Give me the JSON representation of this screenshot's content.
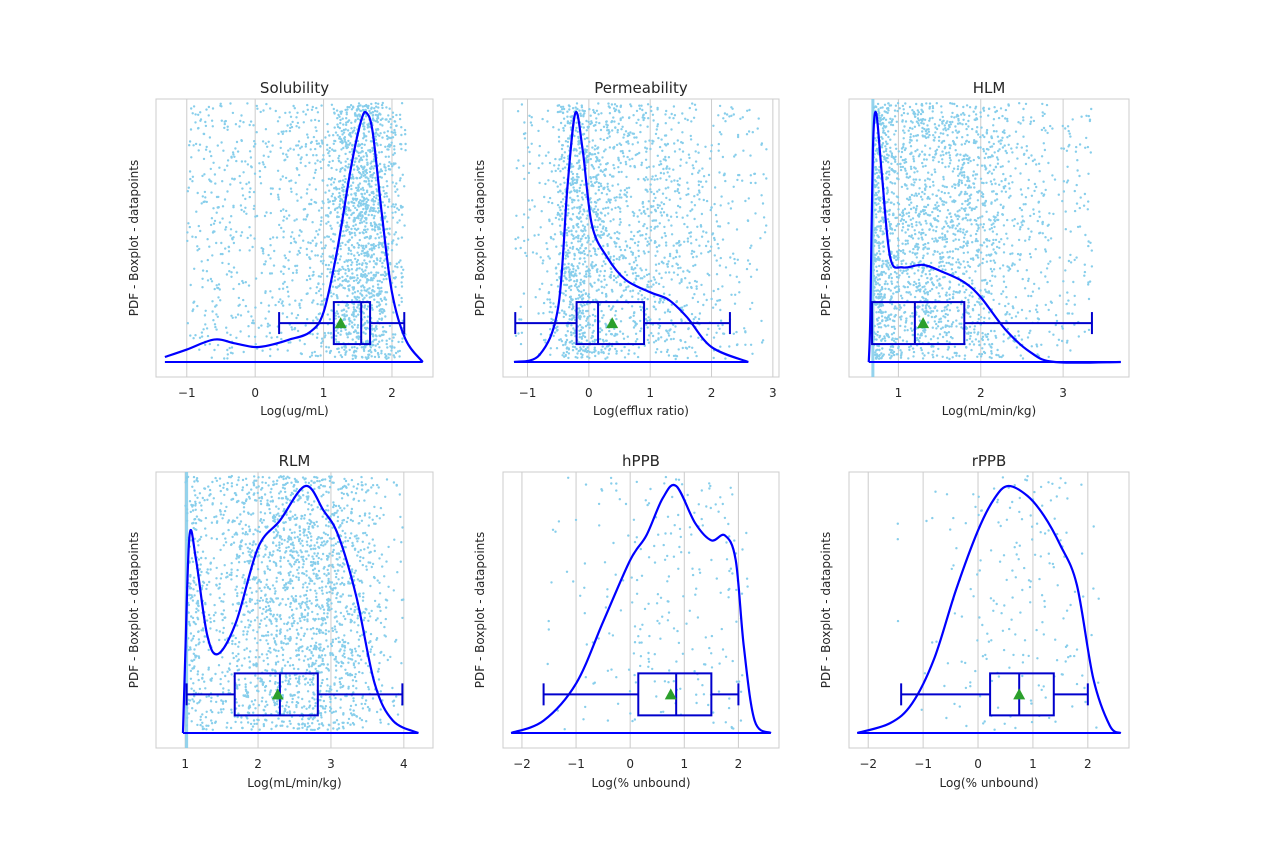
{
  "colors": {
    "points": "#87ceeb",
    "kde": "#0000ff",
    "box": "#0000cd",
    "mean_marker": "#2ca02c",
    "grid": "#cccccc",
    "text": "#262626"
  },
  "chart_data": [
    {
      "type": "violin-box-strip",
      "title": "Solubility",
      "xlabel": "Log(ug/mL)",
      "ylabel": "PDF - Boxplot - datapoints",
      "xlim": [
        -1.45,
        2.6
      ],
      "xticks": [
        -1,
        0,
        1,
        2
      ],
      "grid": true,
      "points_dist": {
        "type": "skewhigh",
        "peak": 1.62,
        "lo": -1.0,
        "hi": 2.2,
        "n": 2200
      },
      "kde": [
        [
          -1.32,
          0.02
        ],
        [
          -1.0,
          0.05
        ],
        [
          -0.6,
          0.09
        ],
        [
          -0.3,
          0.075
        ],
        [
          0.0,
          0.06
        ],
        [
          0.25,
          0.07
        ],
        [
          0.5,
          0.09
        ],
        [
          0.8,
          0.12
        ],
        [
          1.0,
          0.2
        ],
        [
          1.2,
          0.45
        ],
        [
          1.4,
          0.78
        ],
        [
          1.55,
          0.97
        ],
        [
          1.63,
          1.0
        ],
        [
          1.72,
          0.92
        ],
        [
          1.85,
          0.6
        ],
        [
          2.0,
          0.28
        ],
        [
          2.2,
          0.09
        ],
        [
          2.45,
          0.0
        ]
      ],
      "box": {
        "min": 0.35,
        "q1": 1.15,
        "median": 1.55,
        "q3": 1.68,
        "max": 2.18,
        "mean": 1.25
      }
    },
    {
      "type": "violin-box-strip",
      "title": "Permeability",
      "xlabel": "Log(efflux ratio)",
      "ylabel": "PDF - Boxplot - datapoints",
      "xlim": [
        -1.4,
        3.1
      ],
      "xticks": [
        -1,
        0,
        1,
        2,
        3
      ],
      "grid": true,
      "points_dist": {
        "type": "skewlow",
        "peak": -0.2,
        "lo": -1.2,
        "hi": 2.9,
        "n": 2000
      },
      "kde": [
        [
          -1.22,
          0.0
        ],
        [
          -0.8,
          0.03
        ],
        [
          -0.5,
          0.22
        ],
        [
          -0.35,
          0.7
        ],
        [
          -0.22,
          1.0
        ],
        [
          -0.1,
          0.85
        ],
        [
          0.05,
          0.55
        ],
        [
          0.3,
          0.42
        ],
        [
          0.6,
          0.33
        ],
        [
          1.0,
          0.28
        ],
        [
          1.3,
          0.25
        ],
        [
          1.6,
          0.18
        ],
        [
          2.0,
          0.06
        ],
        [
          2.6,
          0.0
        ]
      ],
      "box": {
        "min": -1.2,
        "q1": -0.2,
        "median": 0.15,
        "q3": 0.9,
        "max": 2.3,
        "mean": 0.38
      }
    },
    {
      "type": "violin-box-strip",
      "title": "HLM",
      "xlabel": "Log(mL/min/kg)",
      "ylabel": "PDF - Boxplot - datapoints",
      "xlim": [
        0.4,
        3.8
      ],
      "xticks": [
        1,
        2,
        3
      ],
      "grid": true,
      "points_dist": {
        "type": "skewlow",
        "peak": 0.72,
        "lo": 0.7,
        "hi": 3.35,
        "n": 2300,
        "wall": 0.69
      },
      "kde": [
        [
          0.64,
          0.0
        ],
        [
          0.66,
          0.2
        ],
        [
          0.69,
          0.85
        ],
        [
          0.73,
          1.0
        ],
        [
          0.8,
          0.75
        ],
        [
          0.9,
          0.42
        ],
        [
          1.05,
          0.38
        ],
        [
          1.3,
          0.39
        ],
        [
          1.55,
          0.36
        ],
        [
          1.8,
          0.32
        ],
        [
          2.0,
          0.26
        ],
        [
          2.3,
          0.13
        ],
        [
          2.6,
          0.04
        ],
        [
          2.9,
          0.0
        ],
        [
          3.7,
          0.0
        ]
      ],
      "box": {
        "min": 0.68,
        "q1": 0.68,
        "median": 1.2,
        "q3": 1.8,
        "max": 3.35,
        "mean": 1.3
      }
    },
    {
      "type": "violin-box-strip",
      "title": "RLM",
      "xlabel": "Log(mL/min/kg)",
      "ylabel": "PDF - Boxplot - datapoints",
      "xlim": [
        0.6,
        4.4
      ],
      "xticks": [
        1,
        2,
        3,
        4
      ],
      "grid": true,
      "points_dist": {
        "type": "uniformish",
        "peak": 2.6,
        "lo": 1.0,
        "hi": 4.0,
        "n": 2300,
        "wall": 1.02
      },
      "kde": [
        [
          0.97,
          0.0
        ],
        [
          1.0,
          0.3
        ],
        [
          1.06,
          0.8
        ],
        [
          1.15,
          0.7
        ],
        [
          1.3,
          0.4
        ],
        [
          1.45,
          0.32
        ],
        [
          1.7,
          0.45
        ],
        [
          2.0,
          0.75
        ],
        [
          2.3,
          0.86
        ],
        [
          2.65,
          1.0
        ],
        [
          2.9,
          0.9
        ],
        [
          3.1,
          0.8
        ],
        [
          3.35,
          0.55
        ],
        [
          3.6,
          0.2
        ],
        [
          3.85,
          0.05
        ],
        [
          4.2,
          0.0
        ]
      ],
      "box": {
        "min": 1.02,
        "q1": 1.68,
        "median": 2.3,
        "q3": 2.82,
        "max": 3.98,
        "mean": 2.27
      }
    },
    {
      "type": "violin-box-strip",
      "title": "hPPB",
      "xlabel": "Log(% unbound)",
      "ylabel": "PDF - Boxplot - datapoints",
      "xlim": [
        -2.35,
        2.75
      ],
      "xticks": [
        -2,
        -1,
        0,
        1,
        2
      ],
      "grid": true,
      "points_dist": {
        "type": "normalish",
        "peak": 0.8,
        "lo": -1.6,
        "hi": 2.2,
        "n": 240
      },
      "kde": [
        [
          -2.2,
          0.0
        ],
        [
          -1.6,
          0.05
        ],
        [
          -1.0,
          0.2
        ],
        [
          -0.5,
          0.45
        ],
        [
          0.0,
          0.7
        ],
        [
          0.3,
          0.8
        ],
        [
          0.6,
          0.95
        ],
        [
          0.85,
          1.0
        ],
        [
          1.2,
          0.85
        ],
        [
          1.5,
          0.78
        ],
        [
          1.75,
          0.8
        ],
        [
          1.95,
          0.7
        ],
        [
          2.1,
          0.35
        ],
        [
          2.3,
          0.05
        ],
        [
          2.6,
          0.0
        ]
      ],
      "box": {
        "min": -1.6,
        "q1": 0.15,
        "median": 0.85,
        "q3": 1.5,
        "max": 2.0,
        "mean": 0.75
      }
    },
    {
      "type": "violin-box-strip",
      "title": "rPPB",
      "xlabel": "Log(% unbound)",
      "ylabel": "PDF - Boxplot - datapoints",
      "xlim": [
        -2.35,
        2.75
      ],
      "xticks": [
        -2,
        -1,
        0,
        1,
        2
      ],
      "grid": true,
      "points_dist": {
        "type": "normalish",
        "peak": 0.7,
        "lo": -1.5,
        "hi": 2.2,
        "n": 200
      },
      "kde": [
        [
          -2.2,
          0.0
        ],
        [
          -1.6,
          0.04
        ],
        [
          -1.2,
          0.12
        ],
        [
          -0.8,
          0.3
        ],
        [
          -0.4,
          0.58
        ],
        [
          0.0,
          0.82
        ],
        [
          0.3,
          0.95
        ],
        [
          0.55,
          1.0
        ],
        [
          0.9,
          0.96
        ],
        [
          1.2,
          0.88
        ],
        [
          1.5,
          0.76
        ],
        [
          1.8,
          0.6
        ],
        [
          2.1,
          0.22
        ],
        [
          2.4,
          0.03
        ],
        [
          2.6,
          0.0
        ]
      ],
      "box": {
        "min": -1.4,
        "q1": 0.22,
        "median": 0.75,
        "q3": 1.38,
        "max": 2.0,
        "mean": 0.75
      }
    }
  ]
}
